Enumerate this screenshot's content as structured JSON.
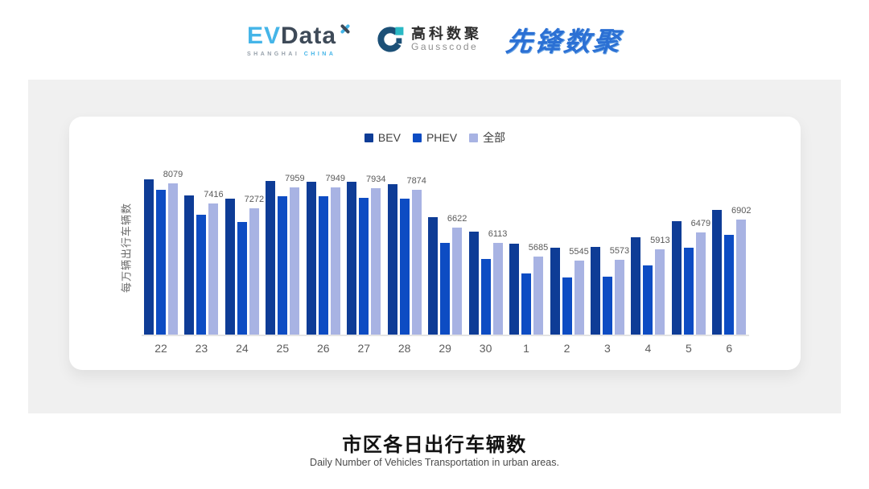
{
  "header": {
    "evdata": {
      "part1": "EV",
      "part2": "Data",
      "tagline_left": "SHANGHAI ",
      "tagline_right": "CHINA"
    },
    "gausscode": {
      "name_cn": "高科数聚",
      "name_en": "Gausscode"
    },
    "pioneer": {
      "name": "先锋数聚"
    }
  },
  "chart_data": {
    "type": "bar",
    "ylabel": "每万辆出行车辆数",
    "categories": [
      "22",
      "23",
      "24",
      "25",
      "26",
      "27",
      "28",
      "29",
      "30",
      "1",
      "2",
      "3",
      "4",
      "5",
      "6"
    ],
    "series": [
      {
        "name": "BEV",
        "color": "#0e3c96",
        "values": [
          8210,
          7680,
          7580,
          8150,
          8125,
          8130,
          8060,
          6960,
          6490,
          6100,
          5960,
          5990,
          6300,
          6830,
          7220
        ],
        "estimated_from_bar_heights": true
      },
      {
        "name": "PHEV",
        "color": "#0d4cc3",
        "values": [
          7860,
          7040,
          6810,
          7650,
          7650,
          7610,
          7575,
          6120,
          5580,
          5120,
          4990,
          5010,
          5380,
          5970,
          6400
        ],
        "estimated_from_bar_heights": true
      },
      {
        "name": "全部",
        "color": "#a8b3e3",
        "values": [
          8079,
          7416,
          7272,
          7959,
          7949,
          7934,
          7874,
          6622,
          6113,
          5685,
          5545,
          5573,
          5913,
          6479,
          6902
        ],
        "data_labels_shown": true
      }
    ],
    "data_labels": [
      8079,
      7416,
      7272,
      7959,
      7949,
      7934,
      7874,
      6622,
      6113,
      5685,
      5545,
      5573,
      5913,
      6479,
      6902
    ],
    "legend": [
      "BEV",
      "PHEV",
      "全部"
    ],
    "legend_position": "top",
    "value_axis_min": 3100,
    "grid": false
  },
  "footer": {
    "title": "市区各日出行车辆数",
    "subtitle": "Daily Number of Vehicles Transportation in urban areas."
  }
}
